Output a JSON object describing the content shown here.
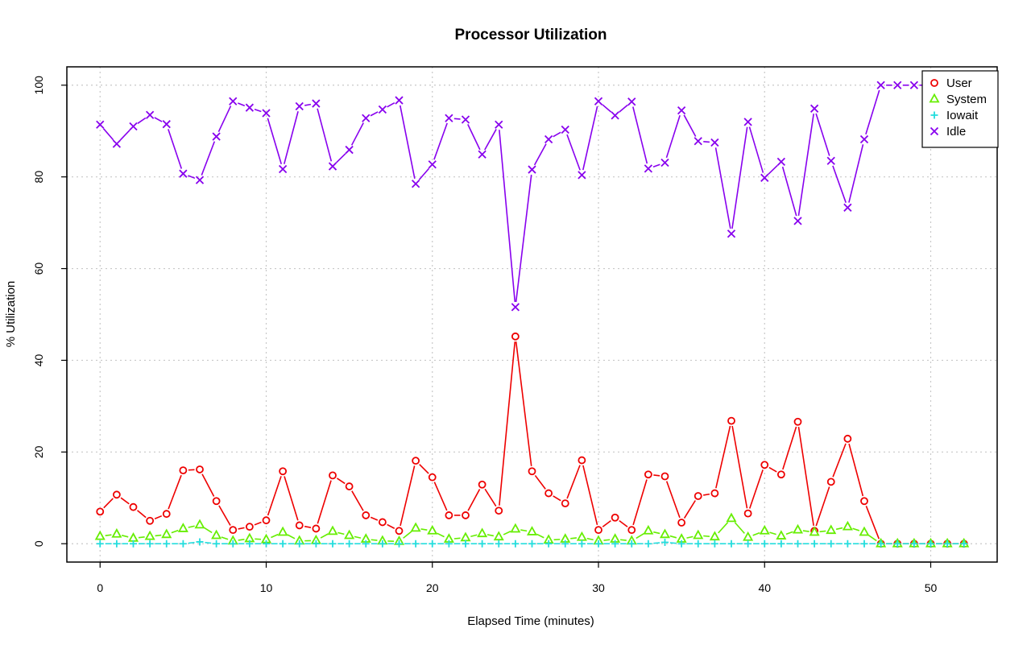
{
  "chart_data": {
    "type": "line",
    "title": "Processor Utilization",
    "xlabel": "Elapsed Time (minutes)",
    "ylabel": "% Utilization",
    "xlim": [
      -2,
      54
    ],
    "ylim": [
      -4,
      104
    ],
    "x_ticks": [
      0,
      10,
      20,
      30,
      40,
      50
    ],
    "y_ticks": [
      0,
      20,
      40,
      60,
      80,
      100
    ],
    "grid": true,
    "legend_position": "top-right",
    "x": [
      0,
      1,
      2,
      3,
      4,
      5,
      6,
      7,
      8,
      9,
      10,
      11,
      12,
      13,
      14,
      15,
      16,
      17,
      18,
      19,
      20,
      21,
      22,
      23,
      24,
      25,
      26,
      27,
      28,
      29,
      30,
      31,
      32,
      33,
      34,
      35,
      36,
      37,
      38,
      39,
      40,
      41,
      42,
      43,
      44,
      45,
      46,
      47,
      48,
      49,
      50,
      51,
      52
    ],
    "series": [
      {
        "name": "User",
        "color": "#ee0000",
        "marker": "circle",
        "values": [
          7,
          10.7,
          8,
          5,
          6.5,
          16,
          16.2,
          9.3,
          3,
          3.7,
          5.1,
          15.8,
          4,
          3.3,
          14.9,
          12.5,
          6.2,
          4.7,
          2.8,
          18.1,
          14.5,
          6.2,
          6.2,
          12.9,
          7.2,
          45.2,
          15.8,
          11,
          8.8,
          18.2,
          3,
          5.7,
          3,
          15.1,
          14.7,
          4.6,
          10.4,
          11,
          26.8,
          6.6,
          17.2,
          15.1,
          26.6,
          2.8,
          13.5,
          22.9,
          9.3,
          0,
          0,
          0,
          0,
          0,
          0
        ]
      },
      {
        "name": "System",
        "color": "#66ee00",
        "marker": "triangle",
        "values": [
          1.6,
          2.1,
          1.2,
          1.6,
          2.0,
          3.3,
          4.1,
          1.8,
          0.6,
          1.1,
          0.9,
          2.5,
          0.6,
          0.7,
          2.7,
          1.8,
          1.0,
          0.6,
          0.5,
          3.4,
          2.8,
          1.0,
          1.3,
          2.2,
          1.5,
          3.2,
          2.6,
          0.8,
          1.0,
          1.4,
          0.6,
          1.0,
          0.6,
          2.8,
          2.0,
          1.0,
          1.8,
          1.5,
          5.5,
          1.4,
          2.8,
          1.7,
          3.0,
          2.5,
          2.9,
          3.7,
          2.5,
          0,
          0,
          0,
          0,
          0,
          0
        ]
      },
      {
        "name": "Iowait",
        "color": "#22dddd",
        "marker": "plus",
        "values": [
          0,
          0,
          0,
          0,
          0,
          0,
          0.4,
          0,
          0,
          0,
          0,
          0,
          0,
          0,
          0,
          0,
          0,
          0,
          0,
          0,
          0,
          0,
          0,
          0,
          0,
          0,
          0,
          0,
          0,
          0,
          0,
          0,
          0,
          0,
          0.3,
          0,
          0,
          0,
          0,
          0,
          0,
          0,
          0,
          0,
          0,
          0,
          0,
          0,
          0,
          0,
          0,
          0,
          0
        ]
      },
      {
        "name": "Idle",
        "color": "#8800ee",
        "marker": "cross",
        "values": [
          91.4,
          87.2,
          91,
          93.5,
          91.5,
          80.7,
          79.3,
          88.8,
          96.5,
          95.1,
          93.9,
          81.7,
          95.4,
          96,
          82.3,
          85.9,
          92.8,
          94.7,
          96.7,
          78.5,
          82.7,
          92.8,
          92.5,
          84.9,
          91.4,
          51.6,
          81.6,
          88.2,
          90.3,
          80.4,
          96.5,
          93.4,
          96.4,
          81.8,
          83.1,
          94.5,
          87.8,
          87.5,
          67.6,
          92,
          79.8,
          83.3,
          70.4,
          94.9,
          83.5,
          73.3,
          88.2,
          100,
          100,
          100,
          100,
          100,
          100
        ]
      }
    ]
  }
}
